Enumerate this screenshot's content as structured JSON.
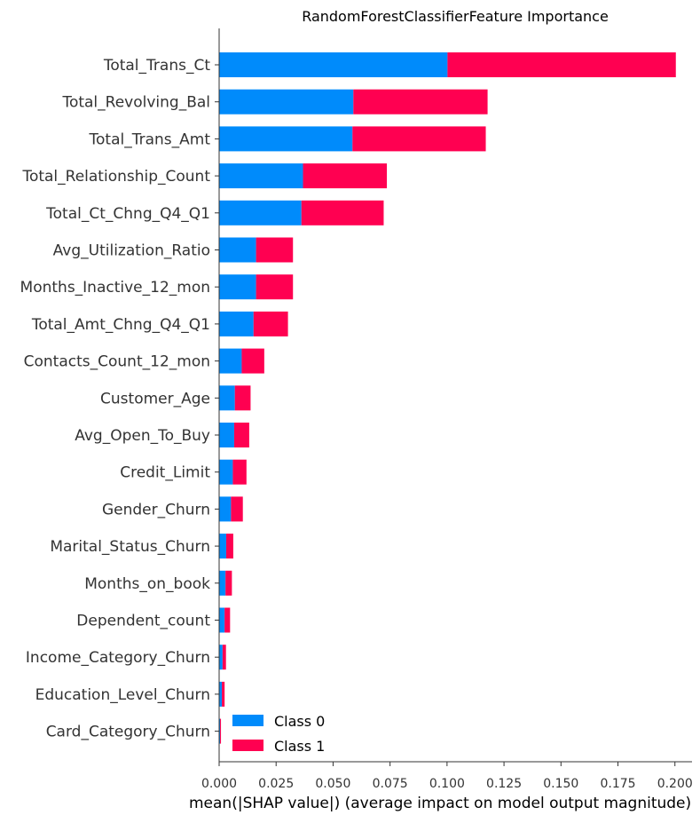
{
  "chart_data": {
    "type": "bar",
    "orientation": "horizontal",
    "stacked": true,
    "title": "RandomForestClassifierFeature Importance",
    "xlabel": "mean(|SHAP value|) (average impact on model output magnitude)",
    "ylabel": "",
    "xlim": [
      0,
      0.2075
    ],
    "xticks": [
      "0.000",
      "0.025",
      "0.050",
      "0.075",
      "0.100",
      "0.125",
      "0.150",
      "0.175",
      "0.200"
    ],
    "grid": false,
    "legend_position": "bottom-left",
    "categories": [
      "Total_Trans_Ct",
      "Total_Revolving_Bal",
      "Total_Trans_Amt",
      "Total_Relationship_Count",
      "Total_Ct_Chng_Q4_Q1",
      "Avg_Utilization_Ratio",
      "Months_Inactive_12_mon",
      "Total_Amt_Chng_Q4_Q1",
      "Contacts_Count_12_mon",
      "Customer_Age",
      "Avg_Open_To_Buy",
      "Credit_Limit",
      "Gender_Churn",
      "Marital_Status_Churn",
      "Months_on_book",
      "Dependent_count",
      "Income_Category_Churn",
      "Education_Level_Churn",
      "Card_Category_Churn"
    ],
    "series": [
      {
        "name": "Class 0",
        "color": "#008bfb",
        "values": [
          0.1002,
          0.0589,
          0.0585,
          0.0368,
          0.0361,
          0.0162,
          0.0162,
          0.0151,
          0.0099,
          0.0069,
          0.0066,
          0.006,
          0.0052,
          0.0031,
          0.0028,
          0.0024,
          0.0015,
          0.0012,
          0.0004
        ]
      },
      {
        "name": "Class 1",
        "color": "#ff0051",
        "values": [
          0.1002,
          0.0589,
          0.0585,
          0.0368,
          0.0361,
          0.0162,
          0.0162,
          0.0151,
          0.0099,
          0.0069,
          0.0066,
          0.006,
          0.0052,
          0.0031,
          0.0028,
          0.0024,
          0.0015,
          0.0012,
          0.0004
        ]
      }
    ]
  }
}
